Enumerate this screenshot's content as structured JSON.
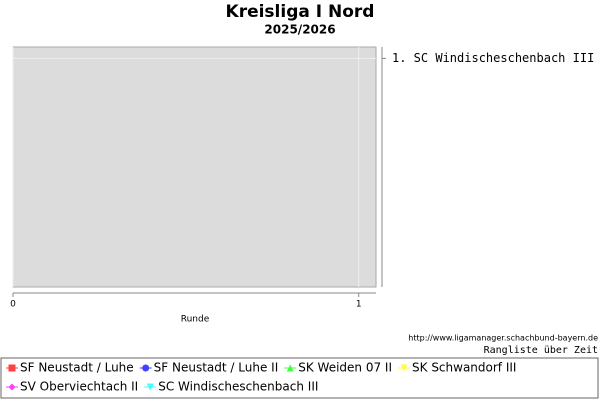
{
  "chart_data": {
    "type": "line",
    "title": "Kreisliga I Nord",
    "subtitle": "2025/2026",
    "x_label": "Runde",
    "source": "http://www.ligamanager.schachbund-bayern.de",
    "note": "Rangliste über Zeit",
    "x": [],
    "xlim": [
      0,
      1.05
    ],
    "xticks": [
      0,
      1
    ],
    "ylim": [
      6,
      0.75
    ],
    "yticks": [
      {
        "value": 1,
        "label": "1. SC Windischeschenbach III"
      }
    ],
    "grid": true,
    "series": [
      {
        "name": "SF Neustadt / Luhe",
        "color": "#ff4040",
        "marker": "square",
        "values": []
      },
      {
        "name": "SF Neustadt / Luhe II",
        "color": "#4040ff",
        "marker": "circle",
        "values": []
      },
      {
        "name": "SK Weiden 07 II",
        "color": "#40ff40",
        "marker": "triangle-up",
        "values": []
      },
      {
        "name": "SK Schwandorf III",
        "color": "#ffff40",
        "marker": "triangle-down",
        "values": []
      },
      {
        "name": "SV Oberviechtach II",
        "color": "#ff40ff",
        "marker": "diamond",
        "values": []
      },
      {
        "name": "SC Windischeschenbach III",
        "color": "#40ffff",
        "marker": "triangle-down",
        "values": []
      }
    ]
  }
}
